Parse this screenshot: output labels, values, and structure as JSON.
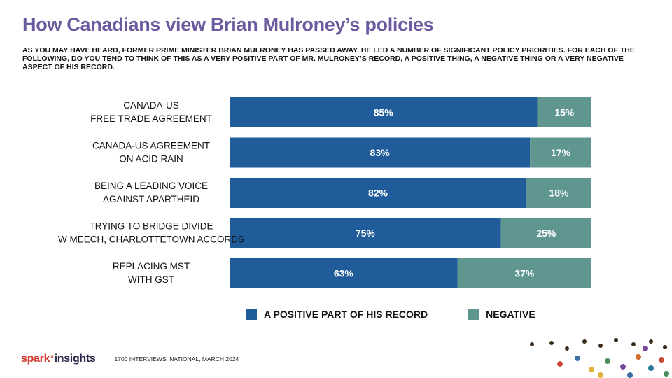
{
  "title": "How Canadians view Brian Mulroney’s policies",
  "subtitle": "AS YOU MAY HAVE HEARD, FORMER PRIME MINISTER BRIAN MULRONEY HAS PASSED AWAY. HE LED A NUMBER OF SIGNIFICANT POLICY PRIORITIES. FOR EACH OF THE FOLLOWING, DO YOU TEND TO THINK OF THIS AS A VERY POSITIVE PART OF MR. MULRONEY’S RECORD, A POSITIVE THING, A NEGATIVE THING OR A VERY NEGATIVE ASPECT OF HIS RECORD.",
  "colors": {
    "title": "#6b5a9e",
    "positive": "#1f5c99",
    "negative": "#5f9690",
    "brand": "#d03a2f"
  },
  "chart_data": {
    "type": "bar",
    "orientation": "horizontal",
    "stacked": true,
    "categories": [
      [
        "CANADA-US",
        "FREE TRADE AGREEMENT"
      ],
      [
        "CANADA-US AGREEMENT",
        "ON ACID RAIN"
      ],
      [
        "BEING A LEADING VOICE",
        "AGAINST APARTHEID"
      ],
      [
        "TRYING TO BRIDGE DIVIDE",
        "W MEECH, CHARLOTTETOWN ACCORDS"
      ],
      [
        "REPLACING MST",
        "WITH GST"
      ]
    ],
    "series": [
      {
        "name": "A POSITIVE PART OF HIS RECORD",
        "values": [
          85,
          83,
          82,
          75,
          63
        ],
        "labels": [
          "85%",
          "83%",
          "82%",
          "75%",
          "63%"
        ]
      },
      {
        "name": "NEGATIVE",
        "values": [
          15,
          17,
          18,
          25,
          37
        ],
        "labels": [
          "15%",
          "17%",
          "18%",
          "25%",
          "37%"
        ]
      }
    ],
    "xlim": [
      0,
      100
    ],
    "legend_position": "bottom"
  },
  "footer": {
    "brand_spark": "spark",
    "brand_insights": "insights",
    "source": "1700 INTERVIEWS, NATIONAL, MARCH 2024"
  }
}
